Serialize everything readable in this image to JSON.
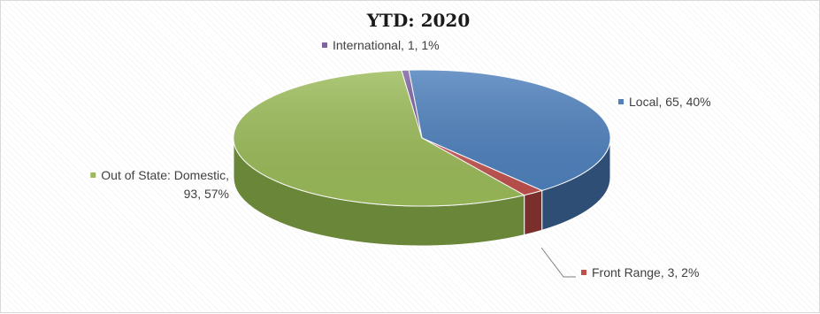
{
  "chart_data": {
    "type": "pie",
    "title": "YTD: 2020",
    "slices": [
      {
        "name": "Local",
        "value": 65,
        "percent": 40,
        "label_lines": [
          "Local, 65, 40%"
        ],
        "color": "#4f81bd",
        "side_color": "#2e4e76"
      },
      {
        "name": "Front Range",
        "value": 3,
        "percent": 2,
        "label_lines": [
          "Front Range, 3, 2%"
        ],
        "color": "#c0504d",
        "side_color": "#7a2f2d"
      },
      {
        "name": "Out of State: Domestic",
        "value": 93,
        "percent": 57,
        "label_lines": [
          "Out of State: Domestic,",
          "93, 57%"
        ],
        "color": "#9bbb59",
        "side_color": "#6a8638"
      },
      {
        "name": "International",
        "value": 1,
        "percent": 1,
        "label_lines": [
          "International, 1, 1%"
        ],
        "color": "#8064a2",
        "side_color": "#55426e"
      }
    ],
    "legend": "none",
    "style": "3d"
  }
}
